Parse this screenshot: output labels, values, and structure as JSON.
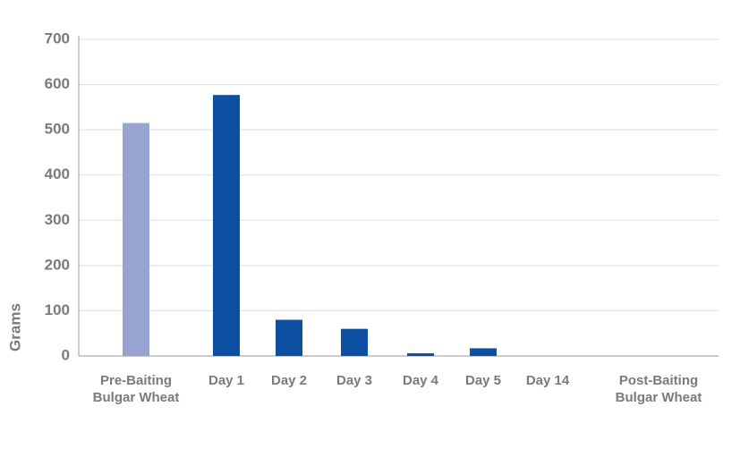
{
  "chart_data": {
    "type": "bar",
    "y_label": "Grams",
    "categories": [
      "Pre-Baiting Bulgar Wheat",
      "Day 1",
      "Day 2",
      "Day 3",
      "Day 4",
      "Day 5",
      "Day 14",
      "Post-Baiting Bulgar Wheat"
    ],
    "values": [
      515,
      577,
      80,
      60,
      6,
      17,
      0,
      0
    ],
    "colors": [
      "#97a3d0",
      "#0d4fa0",
      "#0d4fa0",
      "#0d4fa0",
      "#0d4fa0",
      "#0d4fa0",
      "#0d4fa0",
      "#0d4fa0"
    ],
    "ylim": [
      0,
      700
    ],
    "yticks": [
      0,
      100,
      200,
      300,
      400,
      500,
      600,
      700
    ],
    "grid": true
  }
}
